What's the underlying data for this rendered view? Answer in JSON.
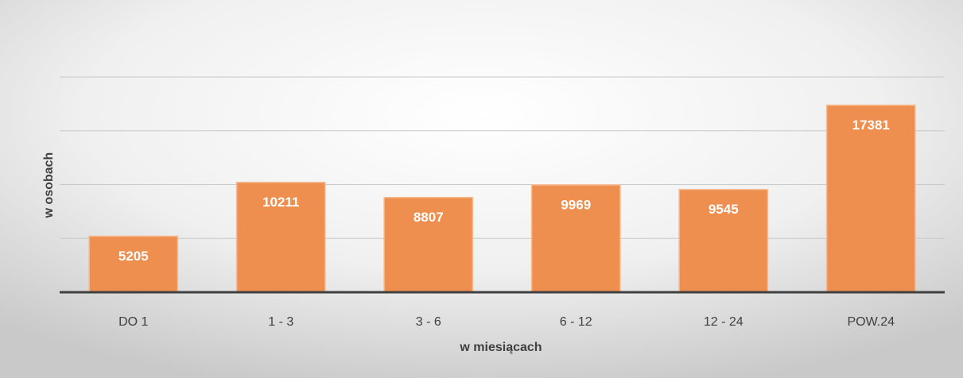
{
  "chart_data": {
    "type": "bar",
    "x_label": "w miesiącach",
    "y_label": "w osobach",
    "categories": [
      "DO 1",
      "1 - 3",
      "3 - 6",
      "6 - 12",
      "12 - 24",
      "POW.24"
    ],
    "values": [
      5205,
      10211,
      8807,
      9969,
      9545,
      17381
    ],
    "color": "#ef8f4f",
    "ylim": [
      0,
      20000
    ],
    "yticks": [
      0,
      5000,
      10000,
      15000,
      20000
    ],
    "grid": true
  }
}
